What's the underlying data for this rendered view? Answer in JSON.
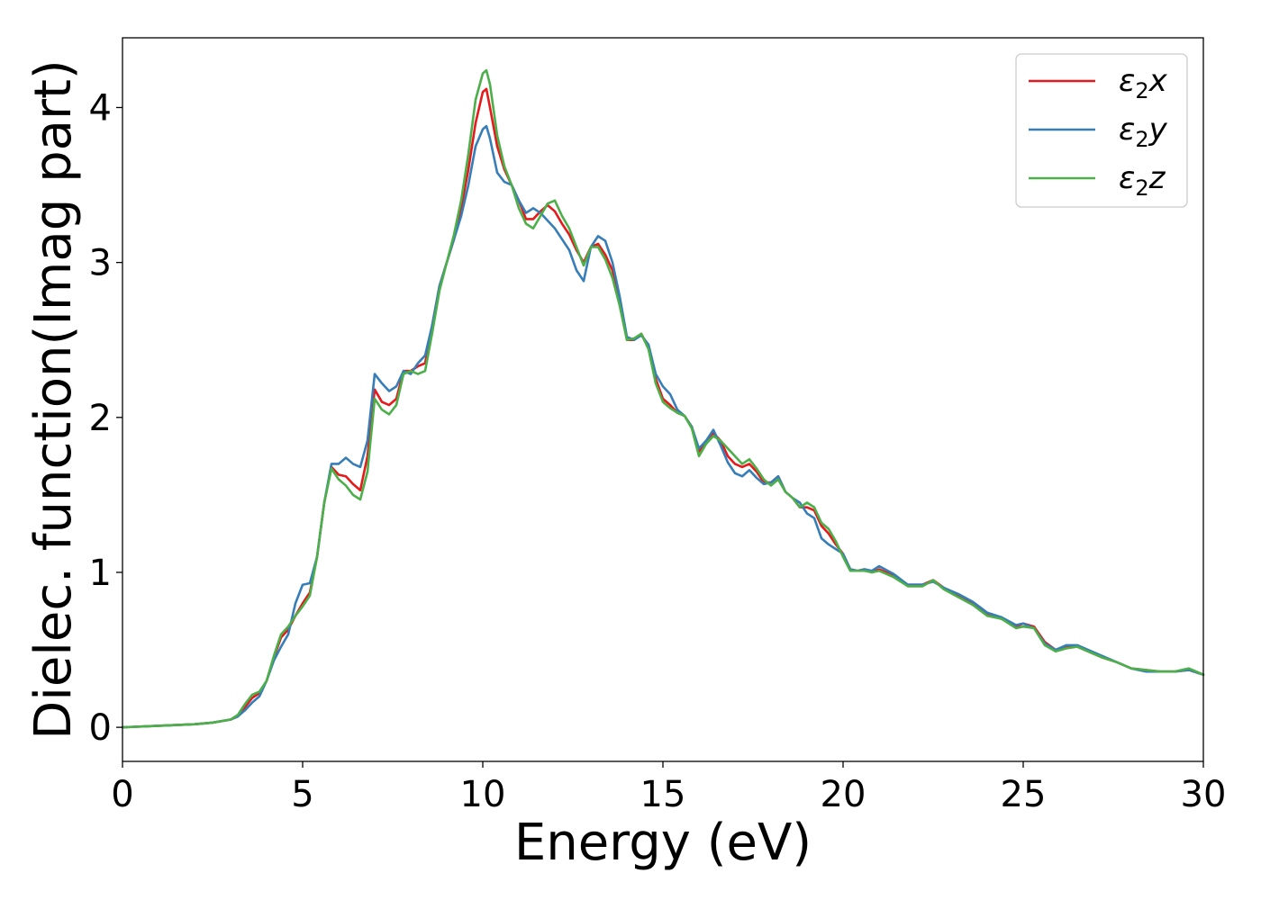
{
  "chart_data": {
    "type": "line",
    "title": "",
    "xlabel": "Energy (eV)",
    "ylabel": "Dielec. function(Imag part)",
    "xlim": [
      0,
      30
    ],
    "ylim": [
      -0.22,
      4.45
    ],
    "xticks": [
      0,
      5,
      10,
      15,
      20,
      25,
      30
    ],
    "yticks": [
      0,
      1,
      2,
      3,
      4
    ],
    "grid": false,
    "legend_position": "top-right",
    "series": [
      {
        "name": "ε₂x",
        "legend_base": "ε",
        "legend_sub": "2",
        "legend_suffix": "x",
        "color": "#e41a1c",
        "x": [
          0,
          1,
          2,
          2.5,
          3,
          3.2,
          3.4,
          3.6,
          3.8,
          4.0,
          4.2,
          4.4,
          4.6,
          4.8,
          5.0,
          5.2,
          5.4,
          5.6,
          5.8,
          6.0,
          6.2,
          6.4,
          6.6,
          6.8,
          7.0,
          7.2,
          7.4,
          7.6,
          7.8,
          8.0,
          8.2,
          8.4,
          8.6,
          8.8,
          9.0,
          9.2,
          9.4,
          9.6,
          9.8,
          10.0,
          10.1,
          10.2,
          10.4,
          10.6,
          10.8,
          11.0,
          11.2,
          11.4,
          11.6,
          11.8,
          12.0,
          12.2,
          12.4,
          12.6,
          12.8,
          13.0,
          13.2,
          13.4,
          13.6,
          13.8,
          14.0,
          14.2,
          14.4,
          14.6,
          14.8,
          15.0,
          15.2,
          15.4,
          15.6,
          15.8,
          16.0,
          16.2,
          16.4,
          16.6,
          16.8,
          17.0,
          17.2,
          17.4,
          17.6,
          17.8,
          18.0,
          18.2,
          18.4,
          18.6,
          18.8,
          19.0,
          19.2,
          19.4,
          19.6,
          19.8,
          20.0,
          20.2,
          20.4,
          20.6,
          20.8,
          21.0,
          21.4,
          21.8,
          22.2,
          22.5,
          22.8,
          23.2,
          23.6,
          24.0,
          24.4,
          24.8,
          25.0,
          25.3,
          25.6,
          25.9,
          26.2,
          26.5,
          26.8,
          27.2,
          27.6,
          28.0,
          28.4,
          28.8,
          29.2,
          29.6,
          30.0
        ],
        "values": [
          0,
          0.01,
          0.02,
          0.03,
          0.05,
          0.07,
          0.13,
          0.19,
          0.22,
          0.3,
          0.45,
          0.58,
          0.63,
          0.72,
          0.8,
          0.87,
          1.1,
          1.45,
          1.68,
          1.63,
          1.62,
          1.57,
          1.53,
          1.75,
          2.18,
          2.1,
          2.08,
          2.12,
          2.3,
          2.3,
          2.33,
          2.35,
          2.6,
          2.85,
          3.0,
          3.15,
          3.35,
          3.6,
          3.9,
          4.1,
          4.12,
          4.0,
          3.75,
          3.6,
          3.5,
          3.4,
          3.28,
          3.28,
          3.33,
          3.37,
          3.33,
          3.25,
          3.18,
          3.08,
          3.0,
          3.1,
          3.12,
          3.05,
          2.95,
          2.75,
          2.5,
          2.5,
          2.54,
          2.45,
          2.25,
          2.12,
          2.08,
          2.03,
          2.01,
          1.94,
          1.78,
          1.85,
          1.9,
          1.85,
          1.75,
          1.7,
          1.68,
          1.7,
          1.65,
          1.58,
          1.58,
          1.62,
          1.52,
          1.48,
          1.42,
          1.42,
          1.4,
          1.3,
          1.25,
          1.18,
          1.12,
          1.02,
          1.01,
          1.02,
          1.0,
          1.02,
          0.98,
          0.92,
          0.92,
          0.95,
          0.9,
          0.85,
          0.8,
          0.73,
          0.7,
          0.65,
          0.67,
          0.65,
          0.55,
          0.5,
          0.52,
          0.52,
          0.49,
          0.45,
          0.42,
          0.38,
          0.37,
          0.36,
          0.36,
          0.37,
          0.34
        ]
      },
      {
        "name": "ε₂y",
        "legend_base": "ε",
        "legend_sub": "2",
        "legend_suffix": "y",
        "color": "#377eb8",
        "x": [
          0,
          1,
          2,
          2.5,
          3,
          3.2,
          3.4,
          3.6,
          3.8,
          4.0,
          4.2,
          4.4,
          4.6,
          4.8,
          5.0,
          5.2,
          5.4,
          5.6,
          5.8,
          6.0,
          6.2,
          6.4,
          6.6,
          6.8,
          7.0,
          7.2,
          7.4,
          7.6,
          7.8,
          8.0,
          8.2,
          8.4,
          8.6,
          8.8,
          9.0,
          9.2,
          9.4,
          9.6,
          9.8,
          10.0,
          10.1,
          10.2,
          10.4,
          10.6,
          10.8,
          11.0,
          11.2,
          11.4,
          11.6,
          11.8,
          12.0,
          12.2,
          12.4,
          12.6,
          12.8,
          13.0,
          13.2,
          13.4,
          13.6,
          13.8,
          14.0,
          14.2,
          14.4,
          14.6,
          14.8,
          15.0,
          15.2,
          15.4,
          15.6,
          15.8,
          16.0,
          16.2,
          16.4,
          16.6,
          16.8,
          17.0,
          17.2,
          17.4,
          17.6,
          17.8,
          18.0,
          18.2,
          18.4,
          18.6,
          18.8,
          19.0,
          19.2,
          19.4,
          19.6,
          19.8,
          20.0,
          20.2,
          20.4,
          20.6,
          20.8,
          21.0,
          21.4,
          21.8,
          22.2,
          22.5,
          22.8,
          23.2,
          23.6,
          24.0,
          24.4,
          24.8,
          25.0,
          25.3,
          25.6,
          25.9,
          26.2,
          26.5,
          26.8,
          27.2,
          27.6,
          28.0,
          28.4,
          28.8,
          29.2,
          29.6,
          30.0
        ],
        "values": [
          0,
          0.01,
          0.02,
          0.03,
          0.05,
          0.07,
          0.11,
          0.16,
          0.2,
          0.3,
          0.43,
          0.52,
          0.6,
          0.8,
          0.92,
          0.93,
          1.1,
          1.45,
          1.7,
          1.7,
          1.74,
          1.7,
          1.68,
          1.85,
          2.28,
          2.22,
          2.17,
          2.2,
          2.3,
          2.28,
          2.35,
          2.4,
          2.6,
          2.85,
          3.0,
          3.15,
          3.3,
          3.5,
          3.75,
          3.86,
          3.88,
          3.8,
          3.58,
          3.52,
          3.5,
          3.4,
          3.32,
          3.35,
          3.32,
          3.27,
          3.22,
          3.15,
          3.08,
          2.95,
          2.88,
          3.1,
          3.17,
          3.14,
          3.0,
          2.78,
          2.52,
          2.5,
          2.53,
          2.47,
          2.28,
          2.2,
          2.15,
          2.05,
          2.01,
          1.94,
          1.8,
          1.85,
          1.92,
          1.82,
          1.71,
          1.64,
          1.62,
          1.66,
          1.61,
          1.57,
          1.58,
          1.62,
          1.52,
          1.48,
          1.45,
          1.38,
          1.35,
          1.22,
          1.18,
          1.15,
          1.12,
          1.02,
          1.01,
          1.02,
          1.01,
          1.04,
          0.99,
          0.92,
          0.92,
          0.94,
          0.9,
          0.86,
          0.81,
          0.74,
          0.71,
          0.66,
          0.67,
          0.64,
          0.54,
          0.5,
          0.53,
          0.53,
          0.5,
          0.46,
          0.42,
          0.38,
          0.36,
          0.36,
          0.36,
          0.37,
          0.34
        ]
      },
      {
        "name": "ε₂z",
        "legend_base": "ε",
        "legend_sub": "2",
        "legend_suffix": "z",
        "color": "#4daf4a",
        "x": [
          0,
          1,
          2,
          2.5,
          3,
          3.2,
          3.4,
          3.6,
          3.8,
          4.0,
          4.2,
          4.4,
          4.6,
          4.8,
          5.0,
          5.2,
          5.4,
          5.6,
          5.8,
          6.0,
          6.2,
          6.4,
          6.6,
          6.8,
          7.0,
          7.2,
          7.4,
          7.6,
          7.8,
          8.0,
          8.2,
          8.4,
          8.6,
          8.8,
          9.0,
          9.2,
          9.4,
          9.6,
          9.8,
          10.0,
          10.1,
          10.2,
          10.4,
          10.6,
          10.8,
          11.0,
          11.2,
          11.4,
          11.6,
          11.8,
          12.0,
          12.2,
          12.4,
          12.6,
          12.8,
          13.0,
          13.2,
          13.4,
          13.6,
          13.8,
          14.0,
          14.2,
          14.4,
          14.6,
          14.8,
          15.0,
          15.2,
          15.4,
          15.6,
          15.8,
          16.0,
          16.2,
          16.4,
          16.6,
          16.8,
          17.0,
          17.2,
          17.4,
          17.6,
          17.8,
          18.0,
          18.2,
          18.4,
          18.6,
          18.8,
          19.0,
          19.2,
          19.4,
          19.6,
          19.8,
          20.0,
          20.2,
          20.4,
          20.6,
          20.8,
          21.0,
          21.4,
          21.8,
          22.2,
          22.5,
          22.8,
          23.2,
          23.6,
          24.0,
          24.4,
          24.8,
          25.0,
          25.3,
          25.6,
          25.9,
          26.2,
          26.5,
          26.8,
          27.2,
          27.6,
          28.0,
          28.4,
          28.8,
          29.2,
          29.6,
          30.0
        ],
        "values": [
          0,
          0.01,
          0.02,
          0.03,
          0.05,
          0.08,
          0.15,
          0.21,
          0.23,
          0.3,
          0.46,
          0.6,
          0.65,
          0.72,
          0.78,
          0.85,
          1.1,
          1.45,
          1.67,
          1.6,
          1.56,
          1.5,
          1.47,
          1.65,
          2.12,
          2.05,
          2.02,
          2.08,
          2.28,
          2.3,
          2.28,
          2.3,
          2.55,
          2.82,
          3.0,
          3.18,
          3.4,
          3.7,
          4.05,
          4.22,
          4.24,
          4.15,
          3.82,
          3.62,
          3.5,
          3.35,
          3.25,
          3.22,
          3.3,
          3.38,
          3.4,
          3.3,
          3.22,
          3.1,
          2.98,
          3.1,
          3.1,
          3.02,
          2.9,
          2.72,
          2.5,
          2.51,
          2.54,
          2.44,
          2.22,
          2.1,
          2.06,
          2.03,
          2.01,
          1.93,
          1.75,
          1.83,
          1.88,
          1.85,
          1.8,
          1.75,
          1.7,
          1.73,
          1.67,
          1.6,
          1.56,
          1.6,
          1.52,
          1.48,
          1.42,
          1.45,
          1.42,
          1.32,
          1.28,
          1.2,
          1.1,
          1.01,
          1.01,
          1.01,
          1.0,
          1.01,
          0.97,
          0.91,
          0.91,
          0.95,
          0.89,
          0.84,
          0.79,
          0.72,
          0.7,
          0.64,
          0.65,
          0.64,
          0.53,
          0.49,
          0.51,
          0.52,
          0.49,
          0.45,
          0.42,
          0.38,
          0.37,
          0.36,
          0.36,
          0.38,
          0.34
        ]
      }
    ]
  }
}
